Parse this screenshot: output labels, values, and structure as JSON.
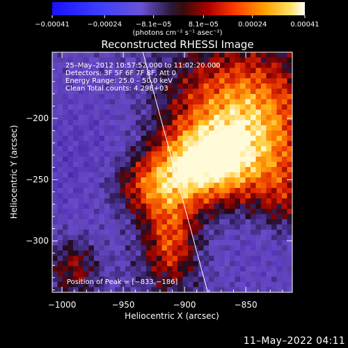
{
  "chart_data": {
    "type": "heatmap",
    "title": "Reconstructed RHESSI Image",
    "xlabel": "Heliocentric X (arcsec)",
    "ylabel": "Heliocentric Y (arcsec)",
    "xlim": [
      -1008,
      -812
    ],
    "ylim": [
      -342,
      -146
    ],
    "x_ticks": [
      -1000,
      -950,
      -900,
      -850
    ],
    "x_tick_labels": [
      "−1000",
      "−950",
      "−900",
      "−850"
    ],
    "y_ticks": [
      -200,
      -250,
      -300
    ],
    "y_tick_labels": [
      "−200",
      "−250",
      "−300"
    ],
    "colorbar": {
      "ticks": [
        -0.00041,
        -0.00024,
        -8.1e-05,
        8.1e-05,
        0.00024,
        0.00041
      ],
      "tick_labels": [
        "−0.00041",
        "−0.00024",
        "−8.1e−05",
        "8.1e−05",
        "0.00024",
        "0.00041"
      ],
      "unit_label": "(photons cm⁻² s⁻¹ asec⁻²)"
    },
    "annotations": [
      "25–May–2012 10:57:52.000 to 11:02:20.000",
      "Detectors: 3F 5F 6F 7F 8F, Att 0",
      "Energy Range: 25.0 – 50.0 keV",
      "Clean    Total counts: 4.29E+03"
    ],
    "peak_label": "Position of Peak = [−833,−186]",
    "peak": [
      -833,
      -186
    ],
    "limb_line": [
      [
        -934,
        -146
      ],
      [
        -881,
        -342
      ]
    ],
    "colors": {
      "background": "#000000",
      "text": "#ffffff",
      "limb": "#ffffff"
    }
  },
  "footer": {
    "timestamp": "11–May–2022 04:11"
  }
}
